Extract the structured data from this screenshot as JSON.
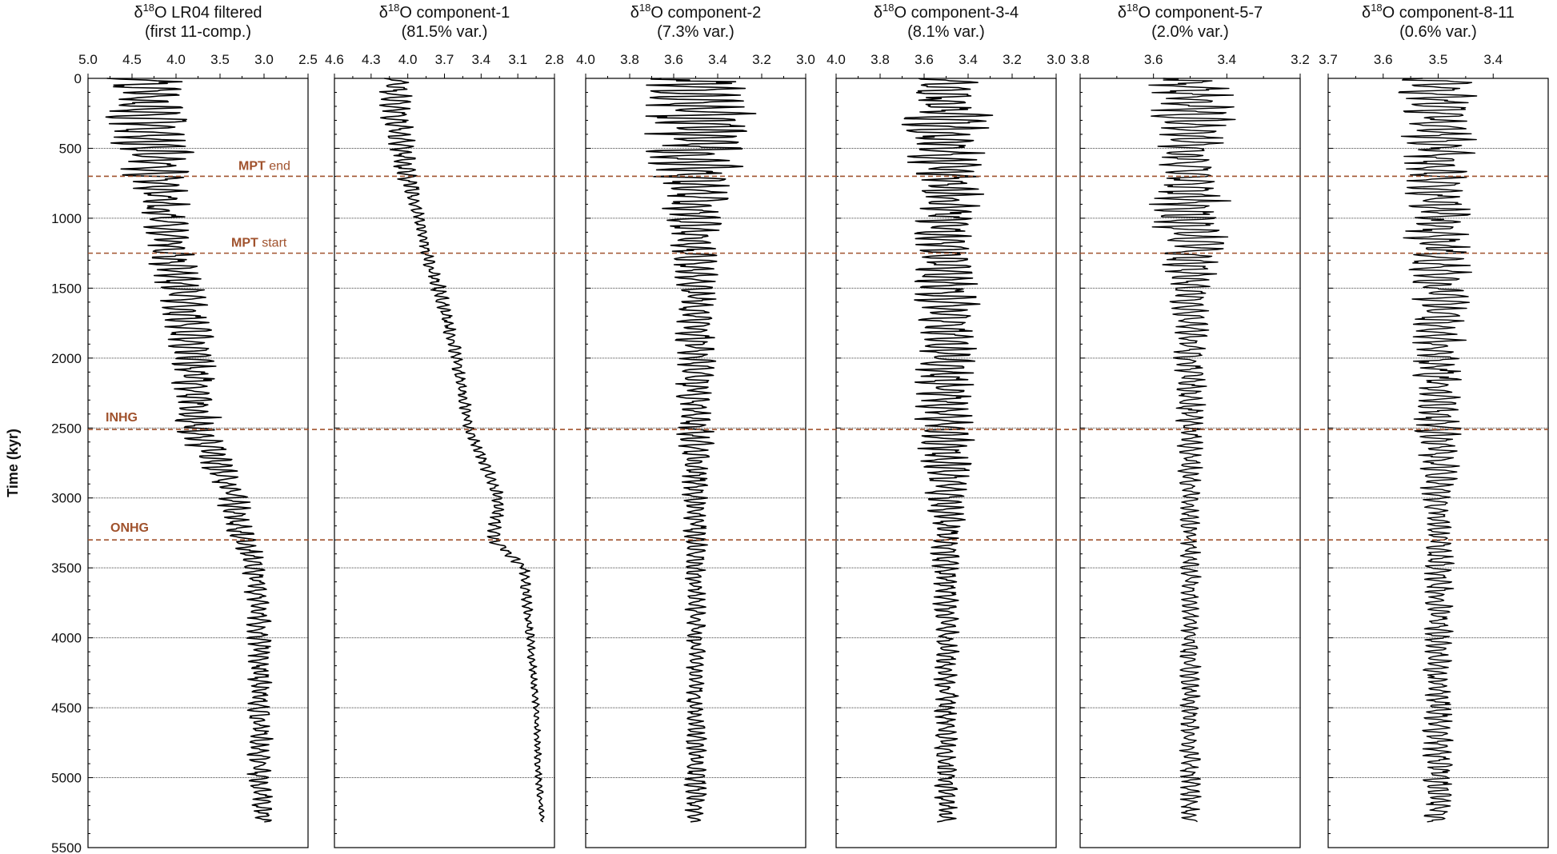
{
  "chart_data": {
    "type": "line",
    "orientation": "vertical-time-axis",
    "ylabel": "Time (kyr)",
    "ylim": [
      0,
      5500
    ],
    "yticks": [
      "0",
      "500",
      "1000",
      "1500",
      "2000",
      "2500",
      "3000",
      "3500",
      "4000",
      "4500",
      "5000",
      "5500"
    ],
    "grid": "horizontal dotted lines every 500 kyr",
    "events": [
      {
        "label_bold": "MPT",
        "label_rest": " end",
        "time": 700
      },
      {
        "label_bold": "MPT",
        "label_rest": " start",
        "time": 1250
      },
      {
        "label_bold": "INHG",
        "label_rest": "",
        "time": 2510
      },
      {
        "label_bold": "ONHG",
        "label_rest": "",
        "time": 3300
      }
    ],
    "panels": [
      {
        "title_prefix": "δ",
        "title_sup": "18",
        "title_rest": "O LR04 filtered",
        "subtitle": "(first 11-comp.)",
        "xlim": [
          5.0,
          2.5
        ],
        "xticks": [
          "5.0",
          "4.5",
          "4.0",
          "3.5",
          "3.0",
          "2.5"
        ],
        "series": [
          {
            "t": [
              0,
              250,
              500,
              750,
              1000,
              1250,
              1500,
              2000,
              2500,
              3000,
              3300,
              3500,
              4000,
              4500,
              5000,
              5300
            ],
            "mean": [
              4.35,
              4.3,
              4.25,
              4.2,
              4.15,
              4.05,
              3.95,
              3.8,
              3.75,
              3.35,
              3.25,
              3.1,
              3.05,
              3.05,
              3.05,
              3.0
            ],
            "amp": [
              0.5,
              0.55,
              0.5,
              0.4,
              0.3,
              0.3,
              0.3,
              0.28,
              0.28,
              0.2,
              0.2,
              0.15,
              0.15,
              0.15,
              0.15,
              0.12
            ]
          }
        ]
      },
      {
        "title_prefix": "δ",
        "title_sup": "18",
        "title_rest": "O component-1",
        "subtitle": "(81.5% var.)",
        "xlim": [
          4.6,
          2.8
        ],
        "xticks": [
          "4.6",
          "4.3",
          "4.0",
          "3.7",
          "3.4",
          "3.1",
          "2.8"
        ],
        "series": [
          {
            "t": [
              0,
              250,
              500,
              750,
              1000,
              1250,
              1500,
              2000,
              2500,
              3000,
              3300,
              3500,
              4000,
              4500,
              5000,
              5300
            ],
            "mean": [
              4.1,
              4.1,
              4.05,
              4.0,
              3.9,
              3.85,
              3.75,
              3.6,
              3.5,
              3.25,
              3.3,
              3.05,
              3.0,
              2.95,
              2.93,
              2.9
            ],
            "amp": [
              0.15,
              0.15,
              0.12,
              0.1,
              0.06,
              0.05,
              0.07,
              0.06,
              0.05,
              0.06,
              0.06,
              0.05,
              0.04,
              0.03,
              0.03,
              0.02
            ]
          }
        ]
      },
      {
        "title_prefix": "δ",
        "title_sup": "18",
        "title_rest": "O component-2",
        "subtitle": "(7.3% var.)",
        "xlim": [
          4.0,
          3.0
        ],
        "xticks": [
          "4.0",
          "3.8",
          "3.6",
          "3.4",
          "3.2",
          "3.0"
        ],
        "series": [
          {
            "t": [
              0,
              250,
              500,
              750,
              1000,
              1250,
              1500,
              2000,
              2500,
              3000,
              3300,
              3500,
              4000,
              4500,
              5000,
              5300
            ],
            "mean": [
              3.5,
              3.5,
              3.5,
              3.5,
              3.5,
              3.5,
              3.5,
              3.5,
              3.5,
              3.5,
              3.5,
              3.5,
              3.5,
              3.5,
              3.5,
              3.5
            ],
            "amp": [
              0.25,
              0.28,
              0.25,
              0.2,
              0.15,
              0.12,
              0.1,
              0.1,
              0.1,
              0.06,
              0.06,
              0.05,
              0.05,
              0.05,
              0.06,
              0.05
            ]
          }
        ]
      },
      {
        "title_prefix": "δ",
        "title_sup": "18",
        "title_rest": "O component-3-4",
        "subtitle": "(8.1% var.)",
        "xlim": [
          4.0,
          3.0
        ],
        "xticks": [
          "4.0",
          "3.8",
          "3.6",
          "3.4",
          "3.2",
          "3.0"
        ],
        "series": [
          {
            "t": [
              0,
              250,
              500,
              750,
              1000,
              1250,
              1500,
              2000,
              2500,
              3000,
              3300,
              3500,
              4000,
              4500,
              5000,
              5300
            ],
            "mean": [
              3.5,
              3.5,
              3.5,
              3.5,
              3.5,
              3.5,
              3.5,
              3.5,
              3.5,
              3.5,
              3.5,
              3.5,
              3.5,
              3.5,
              3.5,
              3.5
            ],
            "amp": [
              0.2,
              0.22,
              0.18,
              0.18,
              0.16,
              0.16,
              0.16,
              0.15,
              0.15,
              0.1,
              0.08,
              0.07,
              0.06,
              0.06,
              0.06,
              0.05
            ]
          }
        ]
      },
      {
        "title_prefix": "δ",
        "title_sup": "18",
        "title_rest": "O component-5-7",
        "subtitle": "(2.0% var.)",
        "xlim": [
          3.8,
          3.2
        ],
        "xticks": [
          "3.8",
          "3.6",
          "3.4",
          "3.2"
        ],
        "series": [
          {
            "t": [
              0,
              250,
              500,
              750,
              1000,
              1250,
              1500,
              2000,
              2500,
              3000,
              3300,
              3500,
              4000,
              4500,
              5000,
              5300
            ],
            "mean": [
              3.5,
              3.5,
              3.5,
              3.5,
              3.5,
              3.5,
              3.5,
              3.5,
              3.5,
              3.5,
              3.5,
              3.5,
              3.5,
              3.5,
              3.5,
              3.5
            ],
            "amp": [
              0.12,
              0.13,
              0.1,
              0.09,
              0.14,
              0.09,
              0.06,
              0.05,
              0.04,
              0.03,
              0.03,
              0.03,
              0.03,
              0.03,
              0.03,
              0.03
            ]
          }
        ]
      },
      {
        "title_prefix": "δ",
        "title_sup": "18",
        "title_rest": "O component-8-11",
        "subtitle": "(0.6% var.)",
        "xlim": [
          3.7,
          3.3
        ],
        "xticks": [
          "3.7",
          "3.6",
          "3.5",
          "3.4"
        ],
        "series": [
          {
            "t": [
              0,
              250,
              500,
              750,
              1000,
              1250,
              1500,
              2000,
              2500,
              3000,
              3300,
              3500,
              4000,
              4500,
              5000,
              5300
            ],
            "mean": [
              3.5,
              3.5,
              3.5,
              3.5,
              3.5,
              3.5,
              3.5,
              3.5,
              3.5,
              3.5,
              3.5,
              3.5,
              3.5,
              3.5,
              3.5,
              3.5
            ],
            "amp": [
              0.08,
              0.08,
              0.07,
              0.06,
              0.07,
              0.07,
              0.06,
              0.05,
              0.05,
              0.03,
              0.03,
              0.03,
              0.03,
              0.03,
              0.03,
              0.03
            ]
          }
        ]
      }
    ],
    "colors": {
      "line": "#000000",
      "event": "#a0522d",
      "grid": "#444444"
    }
  }
}
